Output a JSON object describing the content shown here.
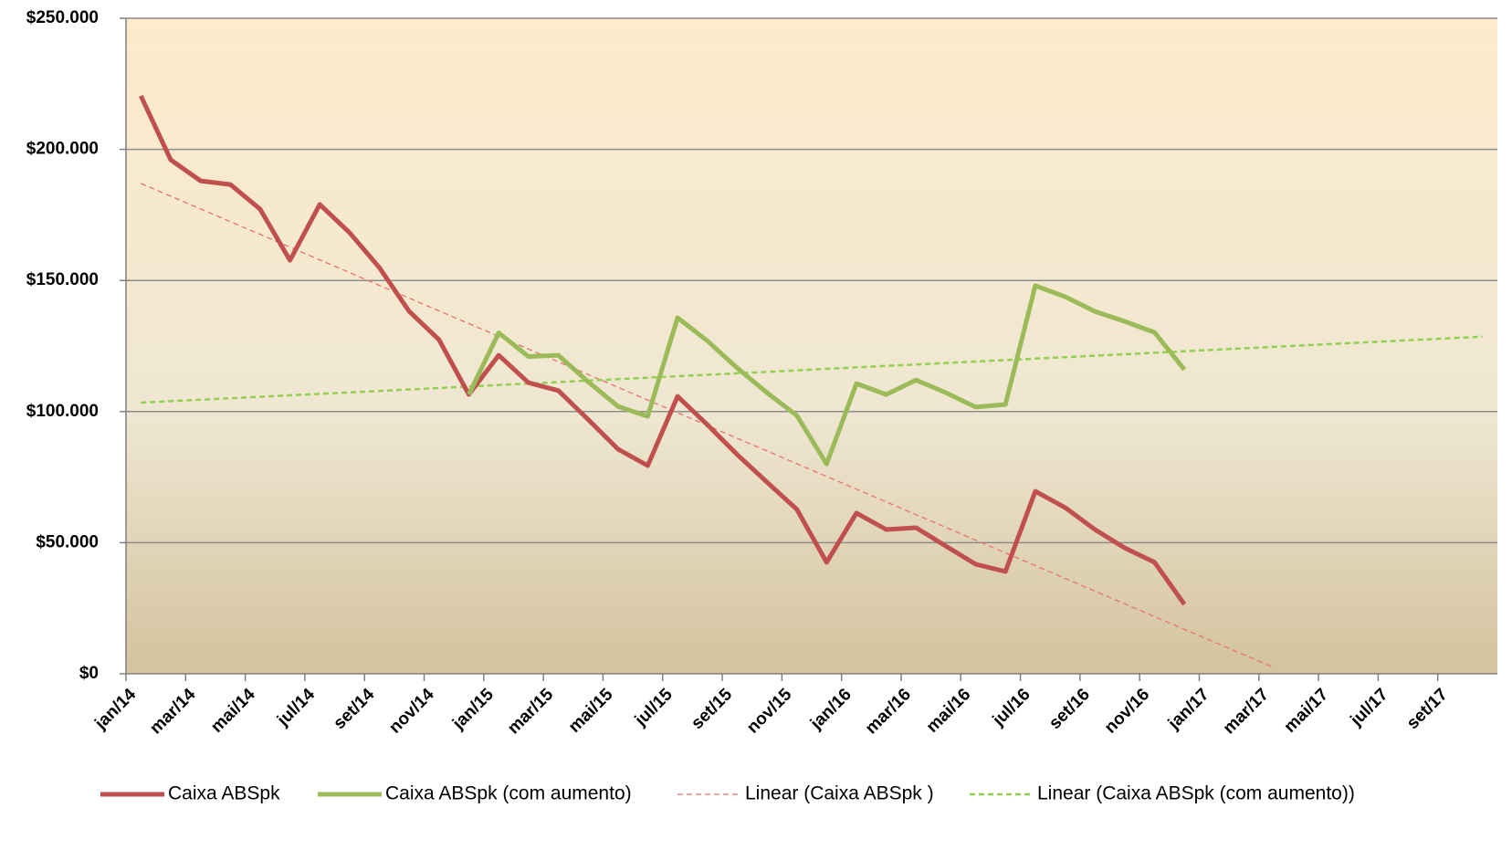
{
  "chart_data": {
    "type": "line",
    "categories": [
      "jan/14",
      null,
      "mar/14",
      null,
      "mai/14",
      null,
      "jul/14",
      null,
      "set/14",
      null,
      "nov/14",
      null,
      "jan/15",
      null,
      "mar/15",
      null,
      "mai/15",
      null,
      "jul/15",
      null,
      "set/15",
      null,
      "nov/15",
      null,
      "jan/16",
      null,
      "mar/16",
      null,
      "mai/16",
      null,
      "jul/16",
      null,
      "set/16",
      null,
      "nov/16",
      null,
      "jan/17",
      null,
      "mar/17",
      null,
      "mai/17",
      null,
      "jul/17",
      null,
      "set/17",
      null
    ],
    "series": [
      {
        "name": "Caixa ABSpk",
        "color": "#c0504d",
        "dash": false,
        "width": 5,
        "values": [
          220400,
          196000,
          188000,
          186600,
          177200,
          157700,
          179000,
          168200,
          154900,
          138200,
          127400,
          106500,
          121500,
          111000,
          108000,
          97000,
          85700,
          79400,
          105800,
          95000,
          83600,
          73100,
          62700,
          42500,
          61300,
          55000,
          55700,
          48700,
          41800,
          39000,
          69600,
          63400,
          55000,
          48000,
          42500,
          26500,
          null,
          null,
          null,
          null,
          null,
          null,
          null,
          null,
          null,
          null
        ]
      },
      {
        "name": "Caixa ABSpk (com aumento)",
        "color": "#9bbb59",
        "dash": false,
        "width": 5,
        "values": [
          null,
          null,
          null,
          null,
          null,
          null,
          null,
          null,
          null,
          null,
          null,
          106500,
          130000,
          121000,
          121500,
          111400,
          102000,
          98200,
          135800,
          127000,
          116600,
          107200,
          98500,
          80000,
          110700,
          106500,
          112000,
          107200,
          101700,
          102700,
          148000,
          143800,
          138200,
          134400,
          130200,
          116000,
          null,
          null,
          null,
          null,
          null,
          null,
          null,
          null,
          null,
          null
        ]
      },
      {
        "name": "Linear (Caixa ABSpk )",
        "color": "#e8726e",
        "dash": true,
        "width": 1.3,
        "values": [
          187000,
          182142,
          177284,
          172426,
          167568,
          162710,
          157852,
          152994,
          148136,
          143278,
          138420,
          133562,
          128704,
          123846,
          118988,
          114130,
          109272,
          104414,
          99556,
          94698,
          89840,
          84982,
          80124,
          75266,
          70408,
          65550,
          60692,
          55834,
          50976,
          46118,
          41260,
          36402,
          31544,
          26686,
          21828,
          16970,
          12112,
          7254,
          2396,
          null,
          null,
          null,
          null,
          null,
          null,
          null
        ]
      },
      {
        "name": "Linear (Caixa ABSpk (com aumento))",
        "color": "#92d050",
        "dash": true,
        "width": 2.5,
        "values": [
          103400,
          103960,
          104520,
          105080,
          105640,
          106200,
          106760,
          107320,
          107880,
          108440,
          109000,
          109560,
          110120,
          110680,
          111240,
          111800,
          112360,
          112920,
          113480,
          114040,
          114600,
          115160,
          115720,
          116280,
          116840,
          117400,
          117960,
          118520,
          119080,
          119640,
          120200,
          120760,
          121320,
          121880,
          122440,
          123000,
          123560,
          124120,
          124680,
          125240,
          125800,
          126360,
          126920,
          127480,
          128040,
          128600
        ]
      }
    ],
    "ylim": [
      0,
      250000
    ],
    "yticks": [
      {
        "value": 0,
        "label": "$0"
      },
      {
        "value": 50000,
        "label": "$50.000"
      },
      {
        "value": 100000,
        "label": "$100.000"
      },
      {
        "value": 150000,
        "label": "$150.000"
      },
      {
        "value": 200000,
        "label": "$200.000"
      },
      {
        "value": 250000,
        "label": "$250.000"
      }
    ],
    "grid": true,
    "legend": "bottom"
  }
}
